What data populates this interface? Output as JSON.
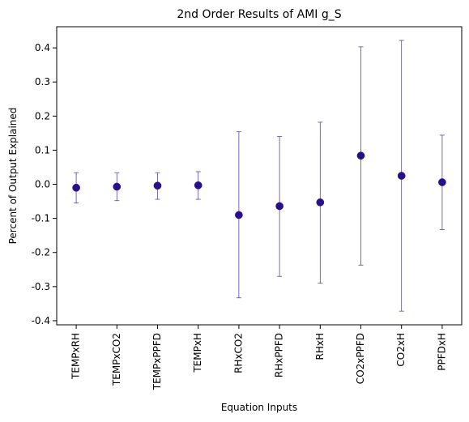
{
  "chart_data": {
    "type": "scatter",
    "title": "2nd Order Results of AMI g_S",
    "xlabel": "Equation Inputs",
    "ylabel": "Percent of Output Explained",
    "categories": [
      "TEMPxRH",
      "TEMPxCO2",
      "TEMPxPPFD",
      "TEMPxH",
      "RHxCO2",
      "RHxPPFD",
      "RHxH",
      "CO2xPPFD",
      "CO2xH",
      "PPFDxH"
    ],
    "values": [
      -0.01,
      -0.007,
      -0.004,
      -0.003,
      -0.09,
      -0.064,
      -0.053,
      0.084,
      0.025,
      0.006
    ],
    "error_low": [
      -0.055,
      -0.048,
      -0.044,
      -0.044,
      -0.333,
      -0.27,
      -0.29,
      -0.237,
      -0.372,
      -0.133
    ],
    "error_high": [
      0.034,
      0.034,
      0.034,
      0.037,
      0.154,
      0.14,
      0.182,
      0.403,
      0.422,
      0.144
    ],
    "y_ticks": [
      "-0.4",
      "-0.3",
      "-0.2",
      "-0.1",
      "0.0",
      "0.1",
      "0.2",
      "0.3",
      "0.4"
    ],
    "ylim": [
      -0.412,
      0.462
    ],
    "grid": false,
    "colors": {
      "marker": "#2a0f8c",
      "errorbar": "#5546a8"
    }
  }
}
